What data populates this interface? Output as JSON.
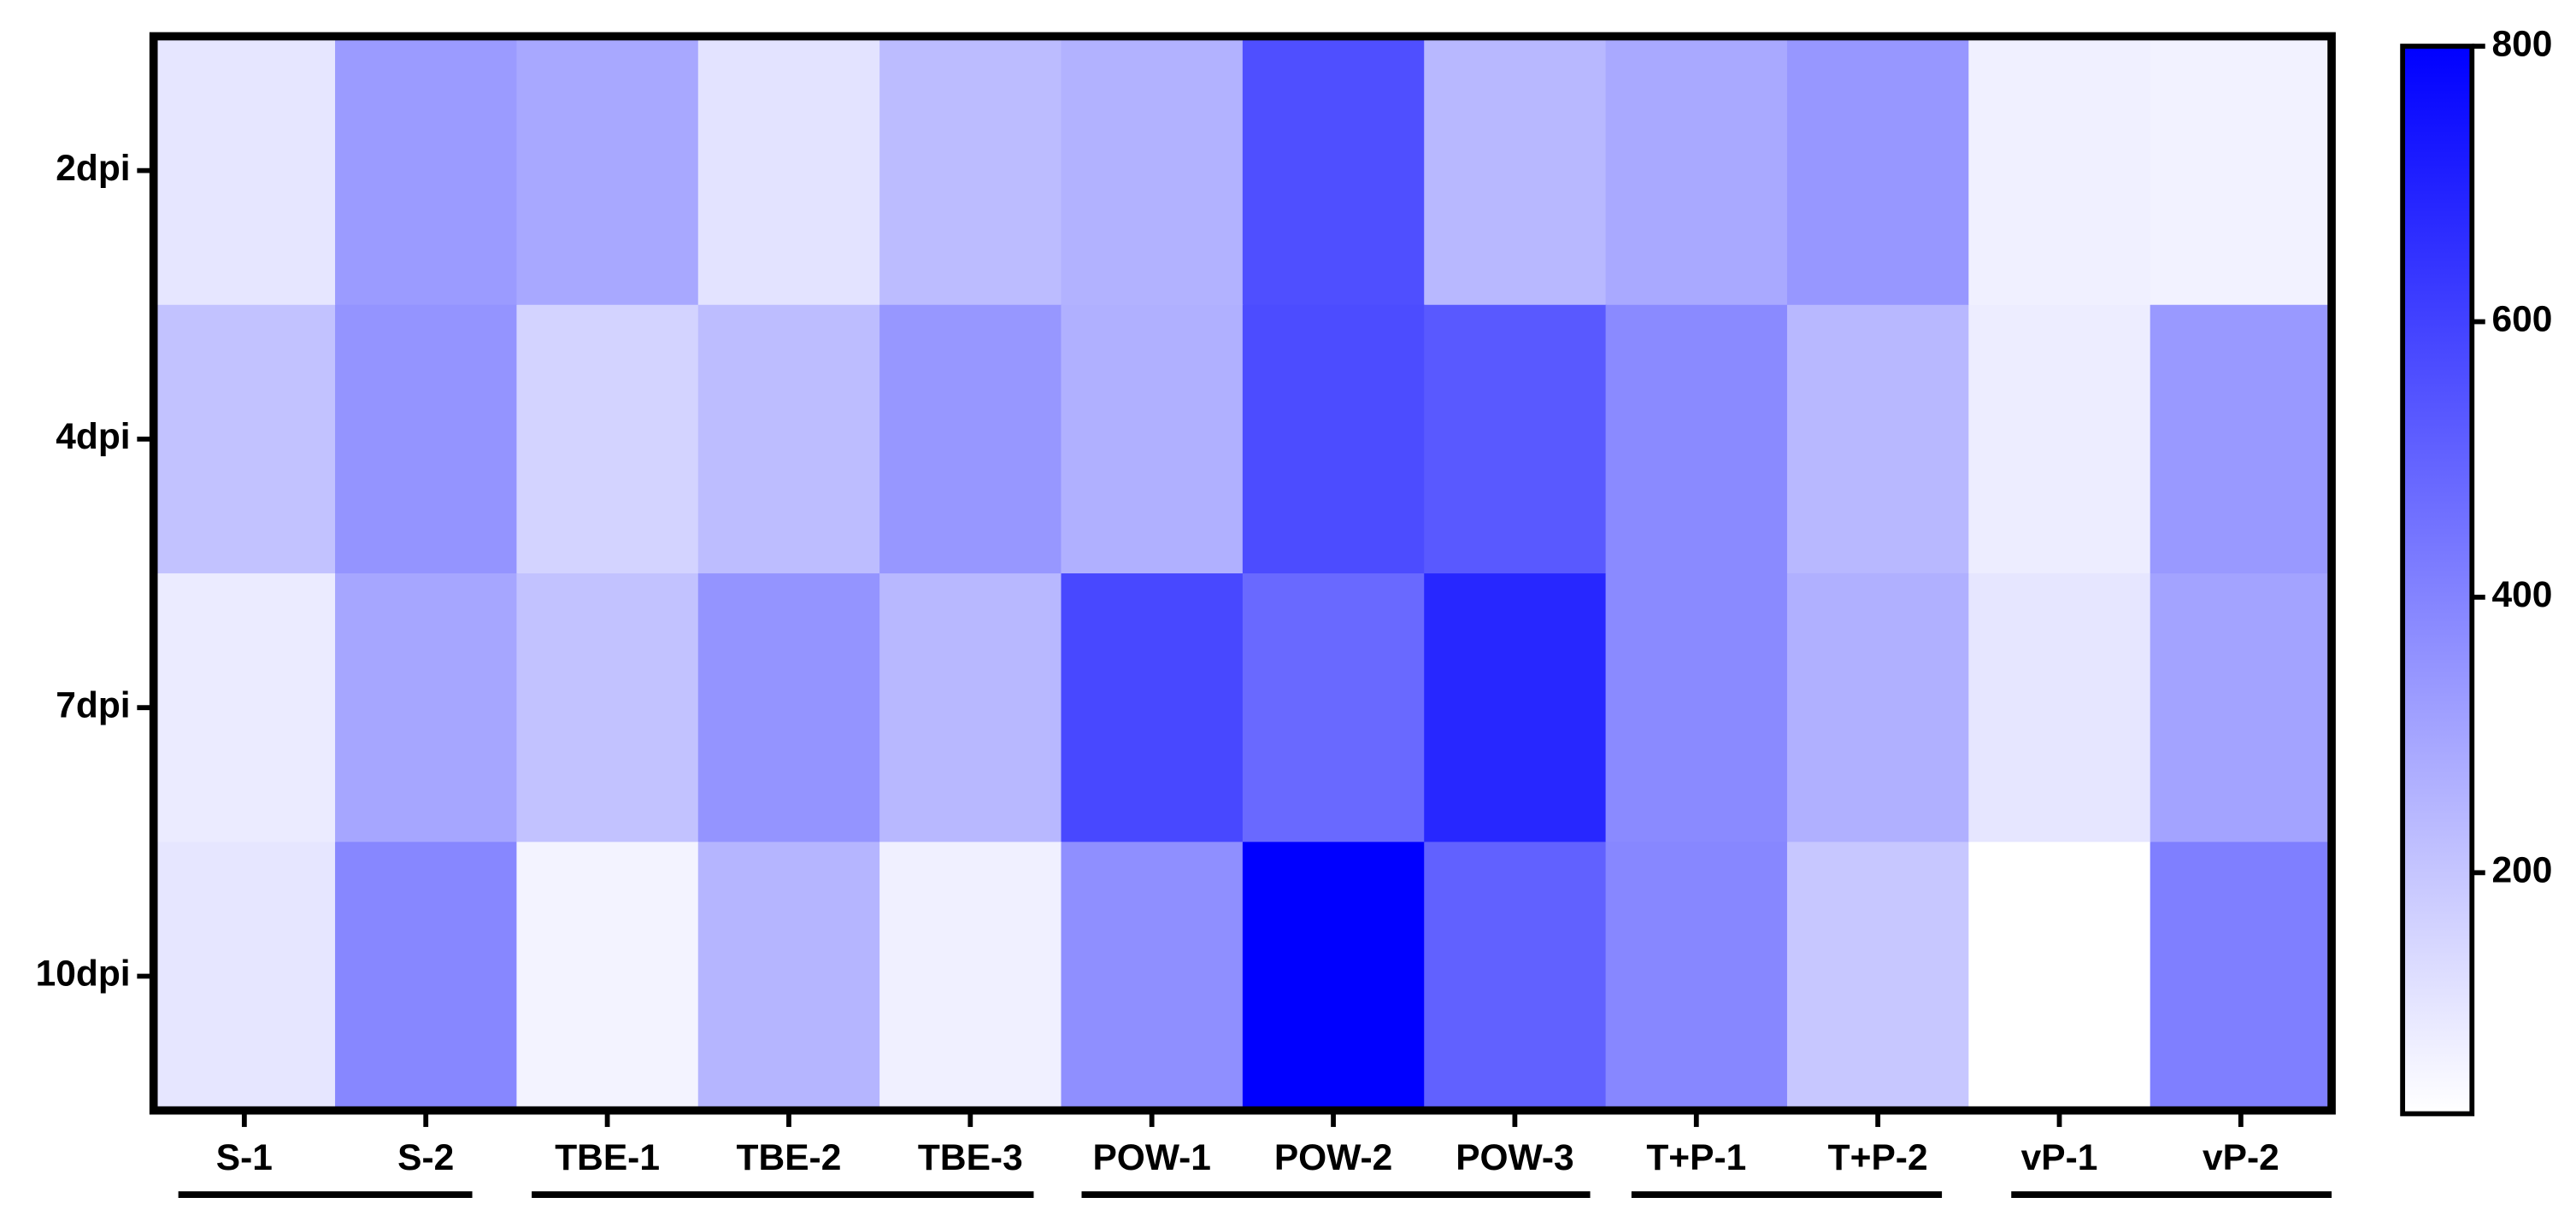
{
  "chart_data": {
    "type": "heatmap",
    "categories": [
      "S-1",
      "S-2",
      "TBE-1",
      "TBE-2",
      "TBE-3",
      "POW-1",
      "POW-2",
      "POW-3",
      "T+P-1",
      "T+P-2",
      "vP-1",
      "vP-2"
    ],
    "rows": [
      "2dpi",
      "4dpi",
      "7dpi",
      "10dpi"
    ],
    "values": [
      [
        100,
        330,
        290,
        110,
        230,
        260,
        560,
        240,
        285,
        340,
        70,
        65
      ],
      [
        210,
        350,
        160,
        225,
        340,
        265,
        570,
        530,
        380,
        240,
        80,
        335
      ],
      [
        85,
        295,
        210,
        350,
        240,
        580,
        480,
        680,
        380,
        265,
        100,
        305
      ],
      [
        100,
        390,
        60,
        250,
        70,
        365,
        800,
        505,
        390,
        195,
        25,
        415
      ]
    ],
    "zlim": [
      25,
      800
    ],
    "zticks": [
      200,
      400,
      600,
      800
    ],
    "low_color": "#ffffff",
    "high_color": "#0000ff"
  }
}
